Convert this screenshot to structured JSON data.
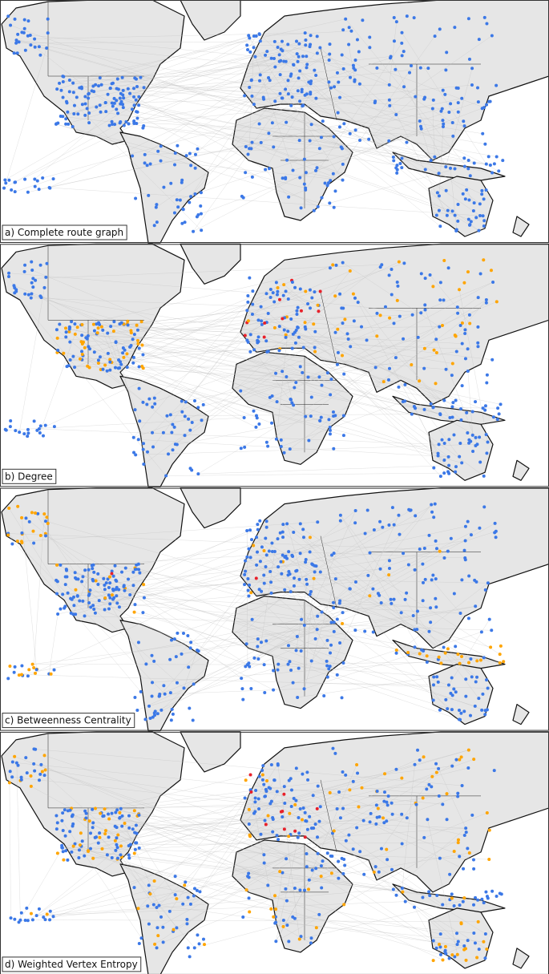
{
  "panels": [
    {
      "label": "a) Complete route graph"
    },
    {
      "label": "b) Degree"
    },
    {
      "label": "c) Betweenness Centrality"
    },
    {
      "label": "d) Weighted Vertex Entropy"
    }
  ]
}
